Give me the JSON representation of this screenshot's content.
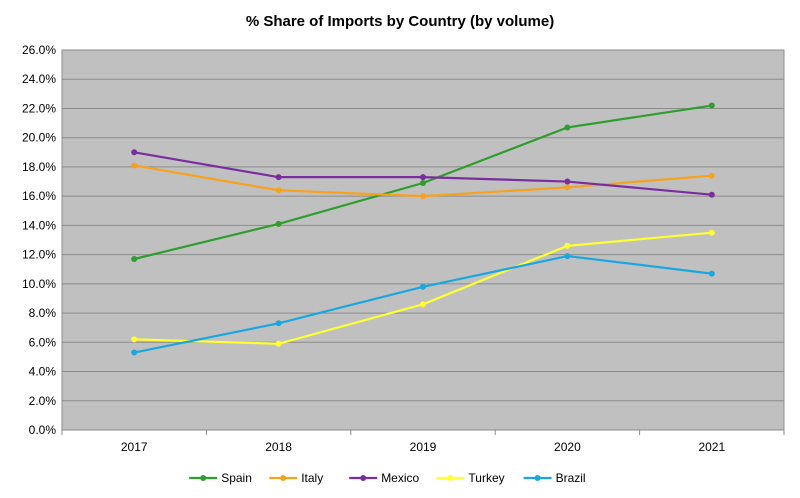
{
  "chart_data": {
    "type": "line",
    "title": "% Share of Imports by Country (by volume)",
    "xlabel": "",
    "ylabel": "",
    "categories": [
      "2017",
      "2018",
      "2019",
      "2020",
      "2021"
    ],
    "ylim": [
      0,
      26
    ],
    "ytick_step": 2,
    "ytick_format": "percent_1dp",
    "grid": true,
    "plot_background": "#c0c0c0",
    "legend_position": "bottom",
    "series": [
      {
        "name": "Spain",
        "color": "#2e9e2e",
        "values": [
          11.7,
          14.1,
          16.9,
          20.7,
          22.2
        ]
      },
      {
        "name": "Italy",
        "color": "#f7a21c",
        "values": [
          18.1,
          16.4,
          16.0,
          16.6,
          17.4
        ]
      },
      {
        "name": "Mexico",
        "color": "#7a2e9e",
        "values": [
          19.0,
          17.3,
          17.3,
          17.0,
          16.1
        ]
      },
      {
        "name": "Turkey",
        "color": "#ffff33",
        "values": [
          6.2,
          5.9,
          8.6,
          12.6,
          13.5
        ]
      },
      {
        "name": "Brazil",
        "color": "#1aa7df",
        "values": [
          5.3,
          7.3,
          9.8,
          11.9,
          10.7
        ]
      }
    ]
  }
}
